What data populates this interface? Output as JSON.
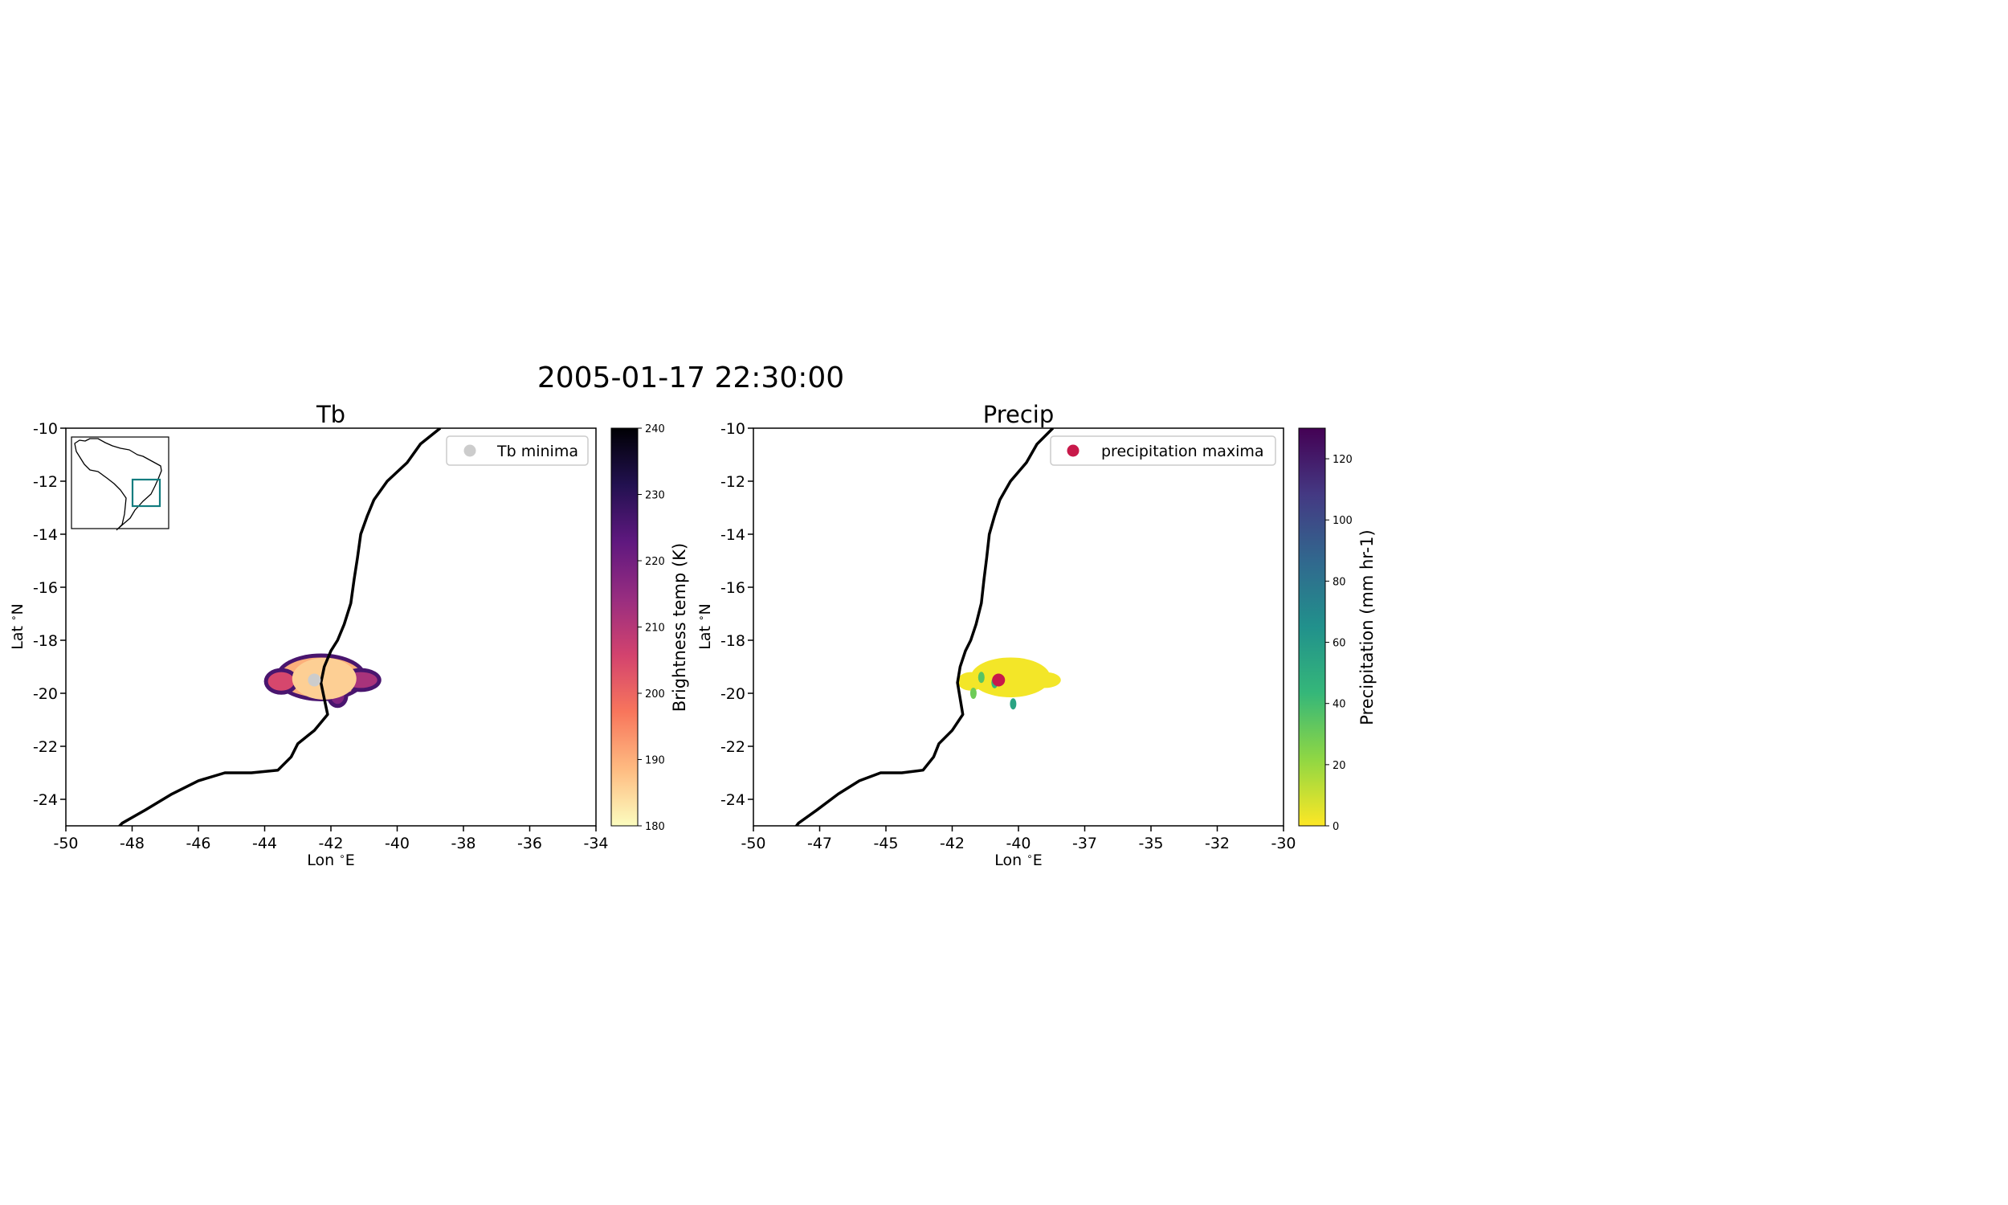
{
  "figure_title": "2005-01-17 22:30:00",
  "chart_data": [
    {
      "type": "heatmap",
      "title": "Tb",
      "xlabel": "Lon $^\\circ$E",
      "ylabel": "Lat $^\\circ$N",
      "xlim": [
        -50,
        -34
      ],
      "ylim": [
        -25,
        -10
      ],
      "xticks": [
        -50,
        -48,
        -46,
        -44,
        -42,
        -40,
        -38,
        -36,
        -34
      ],
      "xticklabels": [
        "-50",
        "-48",
        "-46",
        "-44",
        "-42",
        "-40",
        "-38",
        "-36",
        "-34"
      ],
      "yticks": [
        -10,
        -12,
        -14,
        -16,
        -18,
        -20,
        -22,
        -24
      ],
      "yticklabels": [
        "-10",
        "-12",
        "-14",
        "-16",
        "-18",
        "-20",
        "-22",
        "-24"
      ],
      "grid": false,
      "legend": {
        "label": "Tb minima",
        "position": "top-right",
        "color": "#cccccc"
      },
      "marker": {
        "lon": -42.5,
        "lat": -19.5,
        "color": "#cccccc"
      },
      "colorbar": {
        "label": "Brightness temp (K)",
        "range": [
          180,
          240
        ],
        "ticks": [
          180,
          190,
          200,
          210,
          220,
          230,
          240
        ],
        "ticklabels": [
          "180",
          "190",
          "200",
          "210",
          "220",
          "230",
          "240"
        ],
        "colormap": "magma_r",
        "stops": [
          "#fcfdbf",
          "#febb81",
          "#f8765c",
          "#d3436e",
          "#982d80",
          "#5f187f",
          "#221150",
          "#000004"
        ]
      },
      "field": {
        "description_values": "cold cloud shield near -42.3E, -19.5S with brightness temperatures 188-225 K",
        "blobs": [
          {
            "lon": -42.3,
            "lat": -19.4,
            "rlon": 1.25,
            "rlat": 0.75,
            "value": 190
          },
          {
            "lon": -43.5,
            "lat": -19.55,
            "rlon": 0.4,
            "rlat": 0.35,
            "value": 205
          },
          {
            "lon": -41.1,
            "lat": -19.5,
            "rlon": 0.5,
            "rlat": 0.3,
            "value": 212
          },
          {
            "lon": -41.8,
            "lat": -20.1,
            "rlon": 0.2,
            "rlat": 0.3,
            "value": 218
          }
        ]
      },
      "inset": {
        "map": "South America",
        "box_lon": [
          -50,
          -34
        ],
        "box_lat": [
          -25,
          -10
        ],
        "box_color": "#137c7f"
      }
    },
    {
      "type": "heatmap",
      "title": "Precip",
      "xlabel": "Lon $^\\circ$E",
      "ylabel": "Lat $^\\circ$N",
      "xlim": [
        -50,
        -30
      ],
      "ylim": [
        -25,
        -10
      ],
      "xticks": [
        -50,
        -47.5,
        -45,
        -42.5,
        -40,
        -37.5,
        -35,
        -32.5,
        -30
      ],
      "xticklabels": [
        "-50",
        "-47",
        "-45",
        "-42",
        "-40",
        "-37",
        "-35",
        "-32",
        "-30"
      ],
      "yticks": [
        -10,
        -12,
        -14,
        -16,
        -18,
        -20,
        -22,
        -24
      ],
      "yticklabels": [
        "-10",
        "-12",
        "-14",
        "-16",
        "-18",
        "-20",
        "-22",
        "-24"
      ],
      "grid": false,
      "legend": {
        "label": "precipitation maxima",
        "position": "top-right",
        "color": "#c8194a"
      },
      "marker": {
        "lon": -40.75,
        "lat": -19.5,
        "color": "#c8194a"
      },
      "colorbar": {
        "label": "Precipitation (mm hr-1)",
        "range": [
          0,
          130
        ],
        "ticks": [
          0,
          20,
          40,
          60,
          80,
          100,
          120
        ],
        "ticklabels": [
          "0",
          "20",
          "40",
          "60",
          "80",
          "100",
          "120"
        ],
        "colormap": "viridis_r",
        "stops": [
          "#fde725",
          "#90d743",
          "#35b779",
          "#21918c",
          "#31688e",
          "#443983",
          "#440154"
        ]
      },
      "field": {
        "description_values": "rain area near -40.5E, -19.5S, mostly light rain with scattered 30-60 mm/hr cells",
        "blobs": [
          {
            "lon": -40.3,
            "lat": -19.4,
            "rlon": 1.5,
            "rlat": 0.75,
            "value": 2
          },
          {
            "lon": -41.8,
            "lat": -19.55,
            "rlon": 0.5,
            "rlat": 0.35,
            "value": 2
          },
          {
            "lon": -39.0,
            "lat": -19.5,
            "rlon": 0.6,
            "rlat": 0.3,
            "value": 2
          }
        ],
        "cells": [
          {
            "lon": -41.4,
            "lat": -19.4,
            "value": 35
          },
          {
            "lon": -40.9,
            "lat": -19.6,
            "value": 45
          },
          {
            "lon": -40.2,
            "lat": -20.4,
            "value": 55
          },
          {
            "lon": -41.7,
            "lat": -20.0,
            "value": 30
          }
        ]
      }
    }
  ]
}
